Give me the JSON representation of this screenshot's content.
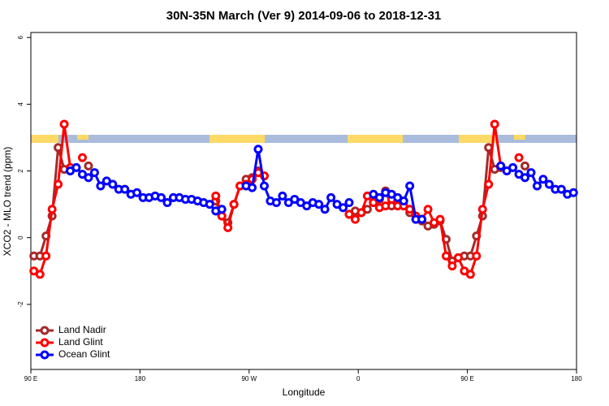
{
  "chart_data": {
    "type": "line",
    "title": "30N-35N March (Ver 9)   2014-09-06 to 2018-12-31",
    "x_label": "Longitude",
    "y_label": "XCO2 - MLO trend (ppm)",
    "xlim": [
      90,
      540
    ],
    "xticks": [
      {
        "value": 90,
        "label": "90 E"
      },
      180,
      {
        "value": 270,
        "label": "90 W"
      },
      {
        "value": 360,
        "label": "0"
      },
      {
        "value": 450,
        "label": "90 E"
      },
      {
        "value": 540,
        "label": "180"
      }
    ],
    "ylim": [
      -3.95,
      6.15
    ],
    "yticks": [
      6,
      4,
      2,
      0,
      -2
    ],
    "legend": "bottom-left",
    "x": [
      92.5,
      97.5,
      102.5,
      107.5,
      112.5,
      117.5,
      122.5,
      127.5,
      132.5,
      137.5,
      142.5,
      147.5,
      152.5,
      157.5,
      162.5,
      167.5,
      172.5,
      177.5,
      182.5,
      187.5,
      192.5,
      197.5,
      202.5,
      207.5,
      212.5,
      217.5,
      222.5,
      227.5,
      232.5,
      237.5,
      242.5,
      247.5,
      252.5,
      257.5,
      262.5,
      267.5,
      272.5,
      277.5,
      282.5,
      287.5,
      292.5,
      297.5,
      302.5,
      307.5,
      312.5,
      317.5,
      322.5,
      327.5,
      332.5,
      337.5,
      342.5,
      347.5,
      352.5,
      357.5,
      362.5,
      367.5,
      372.5,
      377.5,
      382.5,
      387.5,
      392.5,
      397.5,
      402.5,
      407.5,
      412.5,
      417.5,
      422.5,
      427.5,
      432.5,
      437.5,
      442.5,
      447.5,
      452.5,
      457.5,
      462.5,
      467.5,
      472.5,
      477.5,
      482.5,
      487.5,
      492.5,
      497.5,
      502.5,
      507.5,
      512.5,
      517.5,
      522.5,
      527.5,
      532.5,
      537.5
    ],
    "series": [
      {
        "name": "Land Nadir",
        "color": "#a52a2a",
        "values": [
          -0.55,
          -0.55,
          0.05,
          0.65,
          2.7,
          2.05,
          null,
          null,
          null,
          2.15,
          null,
          null,
          null,
          null,
          null,
          null,
          null,
          null,
          null,
          null,
          null,
          null,
          null,
          null,
          null,
          null,
          null,
          null,
          null,
          null,
          1.1,
          0.65,
          0.45,
          1.0,
          1.55,
          1.75,
          1.8,
          2.0,
          1.85,
          null,
          null,
          null,
          null,
          null,
          null,
          null,
          null,
          null,
          null,
          null,
          null,
          null,
          0.7,
          0.8,
          0.75,
          0.85,
          1.05,
          1.15,
          1.4,
          0.95,
          0.95,
          0.95,
          0.75,
          0.55,
          0.5,
          0.35,
          0.4,
          0.5,
          -0.05,
          -0.7,
          -0.6,
          -0.55,
          -0.55,
          0.05,
          0.65,
          2.7,
          2.05,
          2.1,
          null,
          null,
          null,
          2.15,
          null,
          null,
          null,
          null,
          null,
          null,
          null,
          null
        ]
      },
      {
        "name": "Land Glint",
        "color": "#ff0000",
        "values": [
          -1.0,
          -1.1,
          -0.55,
          0.85,
          1.6,
          3.4,
          2.1,
          null,
          2.4,
          null,
          null,
          null,
          null,
          null,
          null,
          null,
          null,
          null,
          null,
          null,
          null,
          null,
          null,
          null,
          null,
          null,
          null,
          null,
          null,
          null,
          1.25,
          0.65,
          0.3,
          1.0,
          1.55,
          1.6,
          1.75,
          1.95,
          1.85,
          null,
          null,
          null,
          null,
          null,
          null,
          null,
          null,
          null,
          null,
          null,
          null,
          null,
          0.7,
          0.55,
          0.75,
          1.25,
          1.05,
          0.9,
          0.95,
          1.15,
          0.95,
          0.95,
          0.85,
          0.65,
          0.55,
          0.85,
          0.45,
          0.55,
          -0.55,
          -0.85,
          -0.6,
          -1.0,
          -1.1,
          -0.55,
          0.85,
          1.6,
          3.4,
          2.15,
          null,
          null,
          2.4,
          null,
          null,
          null,
          null,
          null,
          null,
          null,
          null,
          null
        ]
      },
      {
        "name": "Ocean Glint",
        "color": "#0000ff",
        "values": [
          null,
          null,
          null,
          null,
          null,
          null,
          2.0,
          2.1,
          1.9,
          1.8,
          1.95,
          1.55,
          1.7,
          1.6,
          1.45,
          1.45,
          1.3,
          1.35,
          1.2,
          1.2,
          1.25,
          1.2,
          1.05,
          1.2,
          1.2,
          1.15,
          1.15,
          1.1,
          1.05,
          1.0,
          0.8,
          0.85,
          null,
          null,
          null,
          1.55,
          1.5,
          2.65,
          1.55,
          1.1,
          1.05,
          1.25,
          1.05,
          1.15,
          1.05,
          0.95,
          1.05,
          1.0,
          0.85,
          1.2,
          1.0,
          0.9,
          1.05,
          null,
          null,
          null,
          1.3,
          1.2,
          1.35,
          1.3,
          1.2,
          1.1,
          1.55,
          0.55,
          0.55,
          null,
          null,
          null,
          null,
          null,
          null,
          null,
          null,
          null,
          null,
          null,
          null,
          2.15,
          2.0,
          2.1,
          1.9,
          1.8,
          1.95,
          1.55,
          1.75,
          1.6,
          1.45,
          1.45,
          1.3,
          1.35
        ]
      }
    ]
  }
}
